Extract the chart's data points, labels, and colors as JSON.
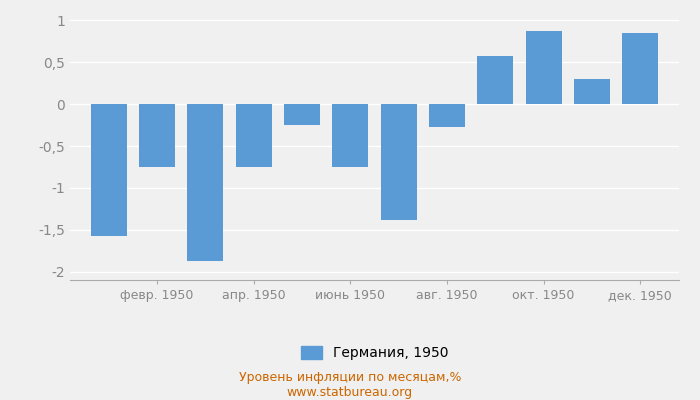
{
  "months": [
    1,
    2,
    3,
    4,
    5,
    6,
    7,
    8,
    9,
    10,
    11,
    12
  ],
  "tick_labels": [
    "февр. 1950",
    "апр. 1950",
    "июнь 1950",
    "авг. 1950",
    "окт. 1950",
    "дек. 1950"
  ],
  "tick_positions": [
    2,
    4,
    6,
    8,
    10,
    12
  ],
  "values": [
    -1.57,
    -0.75,
    -1.87,
    -0.75,
    -0.25,
    -0.75,
    -1.38,
    -0.27,
    0.57,
    0.87,
    0.3,
    0.85
  ],
  "bar_color": "#5b9bd5",
  "ylim": [
    -2.1,
    1.1
  ],
  "yticks": [
    -2.0,
    -1.5,
    -1.0,
    -0.5,
    0.0,
    0.5,
    1.0
  ],
  "ytick_labels": [
    "-2",
    "-1,5",
    "-1",
    "-0,5",
    "0",
    "0,5",
    "1"
  ],
  "legend_label": "Германия, 1950",
  "footnote_line1": "Уровень инфляции по месяцам,%",
  "footnote_line2": "www.statbureau.org",
  "background_color": "#f0f0f0",
  "plot_bg_color": "#f0f0f0",
  "grid_color": "#ffffff",
  "spine_color": "#aaaaaa",
  "tick_color": "#888888",
  "footnote_color": "#cc6600",
  "bar_width": 0.75
}
